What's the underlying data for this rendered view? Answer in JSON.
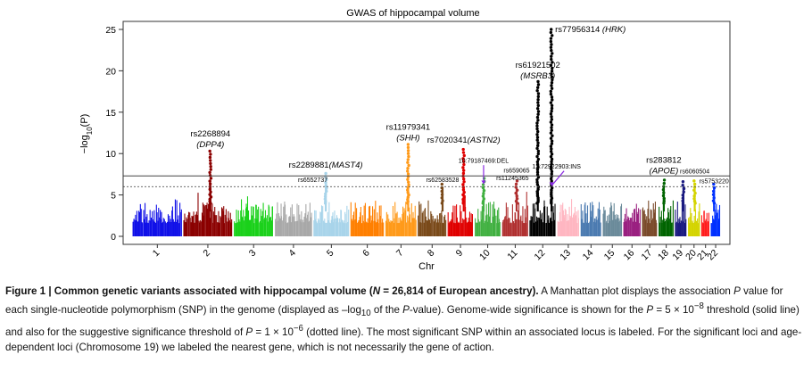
{
  "chart_data": {
    "type": "scatter",
    "subtype": "manhattan",
    "title": "GWAS of hippocampal volume",
    "xlabel": "Chr",
    "ylabel_prefix": "−log",
    "ylabel_sub": "10",
    "ylabel_suffix": "(P)",
    "ylim": [
      0,
      26
    ],
    "yticks": [
      0,
      5,
      10,
      15,
      20,
      25
    ],
    "chromosomes": [
      "1",
      "2",
      "3",
      "4",
      "5",
      "6",
      "7",
      "8",
      "9",
      "10",
      "11",
      "12",
      "13",
      "14",
      "15",
      "16",
      "17",
      "18",
      "19",
      "20",
      "21",
      "22"
    ],
    "chrom_widths": [
      9.0,
      9.0,
      7.3,
      6.9,
      6.6,
      6.2,
      5.8,
      5.3,
      4.8,
      4.9,
      4.9,
      4.9,
      4.2,
      3.9,
      3.7,
      3.3,
      3.0,
      2.9,
      2.3,
      2.4,
      1.7,
      1.9
    ],
    "chrom_colors": [
      "#1010e8",
      "#8b0000",
      "#1ad11a",
      "#a8a8a8",
      "#a8d4ea",
      "#ff7f00",
      "#ff9a1a",
      "#7a4a1a",
      "#e00000",
      "#40b040",
      "#b03030",
      "#000000",
      "#ffb6c1",
      "#4a7ab0",
      "#6a8a9a",
      "#9a2080",
      "#7a4a2a",
      "#006400",
      "#1a1a80",
      "#d4d400",
      "#ff1a1a",
      "#0030ff"
    ],
    "genome_wide_threshold": 7.3,
    "suggestive_threshold": 6.0,
    "peaks": [
      {
        "chr": "2",
        "pos": 0.55,
        "top": 10.3
      },
      {
        "chr": "5",
        "pos": 0.35,
        "top": 7.6
      },
      {
        "chr": "7",
        "pos": 0.72,
        "top": 11.1
      },
      {
        "chr": "8",
        "pos": 0.85,
        "top": 6.3
      },
      {
        "chr": "9",
        "pos": 0.62,
        "top": 10.5
      },
      {
        "chr": "10",
        "pos": 0.35,
        "top": 7.0
      },
      {
        "chr": "11",
        "pos": 0.55,
        "top": 6.7
      },
      {
        "chr": "12",
        "pos": 0.32,
        "top": 18.7
      },
      {
        "chr": "12",
        "pos": 0.82,
        "top": 25.0
      },
      {
        "chr": "18",
        "pos": 0.35,
        "top": 6.8
      },
      {
        "chr": "19",
        "pos": 0.7,
        "top": 6.6
      },
      {
        "chr": "20",
        "pos": 0.55,
        "top": 6.7
      },
      {
        "chr": "22",
        "pos": 0.35,
        "top": 6.3
      }
    ],
    "annotations": [
      {
        "text": "rs2268894",
        "gene": "DPP4",
        "chr": "2",
        "pos": 0.55,
        "y": 10.8
      },
      {
        "text": "rs2289881",
        "gene": "MAST4",
        "chr": "5",
        "pos": 0.35,
        "y": 8.0
      },
      {
        "text": "rs6552737",
        "gene": "",
        "chr": "5",
        "pos": 0.0,
        "y": 6.6
      },
      {
        "text": "rs11979341",
        "gene": "SHH",
        "chr": "7",
        "pos": 0.72,
        "y": 11.6
      },
      {
        "text": "rs62583528",
        "gene": "",
        "chr": "8",
        "pos": 0.85,
        "y": 6.6
      },
      {
        "text": "rs7020341",
        "gene": "ASTN2",
        "chr": "9",
        "pos": 0.62,
        "y": 11.0
      },
      {
        "text": "10:79187469:DEL",
        "gene": "",
        "chr": "10",
        "pos": 0.35,
        "y": 8.9
      },
      {
        "text": "rs659065",
        "gene": "",
        "chr": "11",
        "pos": 0.55,
        "y": 7.7
      },
      {
        "text": "rs11245365",
        "gene": "",
        "chr": "11",
        "pos": 0.4,
        "y": 6.8
      },
      {
        "text": "rs61921502",
        "gene": "MSRB3",
        "chr": "12",
        "pos": 0.32,
        "y": 19.1
      },
      {
        "text": "rs77956314",
        "gene": "HRK",
        "chr": "12",
        "pos": 0.82,
        "y": 25.0
      },
      {
        "text": "12:72922903:INS",
        "gene": "",
        "chr": "13",
        "pos": 0.0,
        "y": 8.2
      },
      {
        "text": "rs283812",
        "gene": "APOE",
        "chr": "18",
        "pos": 0.35,
        "y": 7.6
      },
      {
        "text": "rs6060504",
        "gene": "",
        "chr": "20",
        "pos": 0.55,
        "y": 7.6
      },
      {
        "text": "rs5753220",
        "gene": "",
        "chr": "22",
        "pos": 0.35,
        "y": 6.4
      }
    ]
  },
  "caption": {
    "figure_label": "Figure 1 | Common genetic variants associated with hippocampal volume (",
    "n_label": "N",
    "n_value": " = 26,814 of European ancestry).",
    "text_1": " A Manhattan plot displays the association ",
    "p1": "P",
    "text_2": " value for each single-nucleotide polymorphism (SNP) in the genome (displayed as –log",
    "sub10": "10",
    "text_3": " of the ",
    "p2": "P",
    "text_4": "-value). Genome-wide significance is shown for the ",
    "p3": "P",
    "text_5": " = 5 × 10",
    "exp1": "−8",
    "text_6": " threshold (solid line) and also for the suggestive significance threshold of ",
    "p4": "P",
    "text_7": " = 1 × 10",
    "exp2": "−6",
    "text_8": " (dotted line). The most significant SNP within an associated locus is labeled. For the significant loci and age-dependent loci (Chromosome 19) we labeled the nearest gene, which is not necessarily the gene of action."
  }
}
